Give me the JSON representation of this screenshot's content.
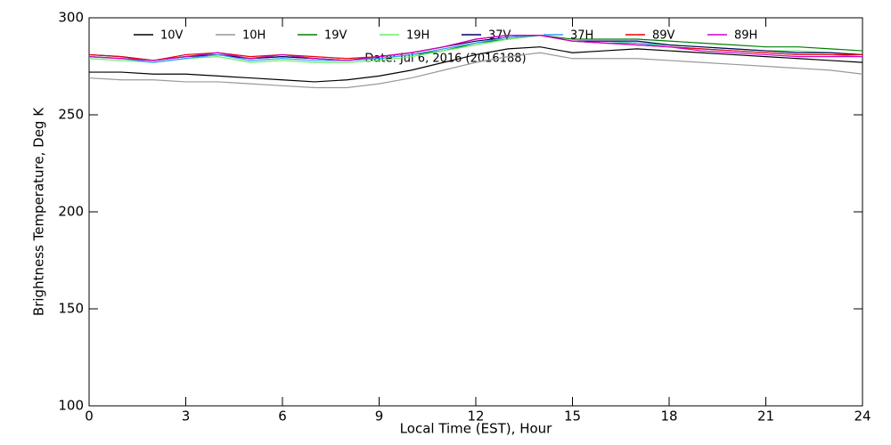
{
  "chart_data": {
    "type": "line",
    "annotation": "Date: Jul  6, 2016 (2016188)",
    "xlabel": "Local Time (EST), Hour",
    "ylabel": "Brightness Temperature, Deg K",
    "x": [
      0,
      1,
      2,
      3,
      4,
      5,
      6,
      7,
      8,
      9,
      10,
      11,
      12,
      13,
      14,
      15,
      16,
      17,
      18,
      19,
      20,
      21,
      22,
      23,
      24
    ],
    "xlim": [
      0,
      24
    ],
    "xticks": [
      0,
      3,
      6,
      9,
      12,
      15,
      18,
      21,
      24
    ],
    "ylim": [
      100,
      300
    ],
    "yticks": [
      100,
      150,
      200,
      250,
      300
    ],
    "series": [
      {
        "name": "10V",
        "color": "#000000",
        "values": [
          272,
          272,
          271,
          271,
          270,
          269,
          268,
          267,
          268,
          270,
          273,
          277,
          281,
          284,
          285,
          282,
          283,
          284,
          283,
          282,
          281,
          280,
          279,
          278,
          277
        ]
      },
      {
        "name": "10H",
        "color": "#999999",
        "values": [
          269,
          268,
          268,
          267,
          267,
          266,
          265,
          264,
          264,
          266,
          269,
          273,
          277,
          280,
          282,
          279,
          279,
          279,
          278,
          277,
          276,
          275,
          274,
          273,
          271
        ]
      },
      {
        "name": "19V",
        "color": "#008000",
        "values": [
          280,
          279,
          278,
          280,
          281,
          279,
          280,
          279,
          278,
          279,
          281,
          283,
          287,
          289,
          291,
          289,
          289,
          289,
          288,
          287,
          286,
          285,
          285,
          284,
          283
        ]
      },
      {
        "name": "19H",
        "color": "#66ee66",
        "values": [
          279,
          278,
          277,
          279,
          280,
          277,
          278,
          277,
          277,
          278,
          280,
          283,
          286,
          289,
          291,
          288,
          288,
          287,
          286,
          285,
          284,
          283,
          283,
          282,
          281
        ]
      },
      {
        "name": "37V",
        "color": "#000060",
        "values": [
          281,
          280,
          278,
          280,
          281,
          279,
          280,
          279,
          278,
          280,
          282,
          285,
          288,
          290,
          291,
          288,
          288,
          288,
          286,
          285,
          284,
          283,
          282,
          282,
          281
        ]
      },
      {
        "name": "37H",
        "color": "#3399ff",
        "values": [
          280,
          279,
          277,
          279,
          281,
          278,
          279,
          278,
          278,
          279,
          281,
          284,
          287,
          290,
          291,
          288,
          287,
          287,
          285,
          284,
          283,
          282,
          281,
          281,
          280
        ]
      },
      {
        "name": "89V",
        "color": "#ee0000",
        "values": [
          281,
          280,
          278,
          281,
          282,
          280,
          281,
          280,
          279,
          280,
          282,
          285,
          289,
          291,
          291,
          288,
          287,
          286,
          285,
          284,
          283,
          282,
          281,
          281,
          281
        ]
      },
      {
        "name": "89H",
        "color": "#cc00cc",
        "values": [
          280,
          279,
          278,
          280,
          282,
          279,
          281,
          279,
          278,
          280,
          282,
          285,
          289,
          291,
          291,
          288,
          287,
          286,
          285,
          283,
          282,
          281,
          280,
          280,
          280
        ]
      }
    ]
  }
}
